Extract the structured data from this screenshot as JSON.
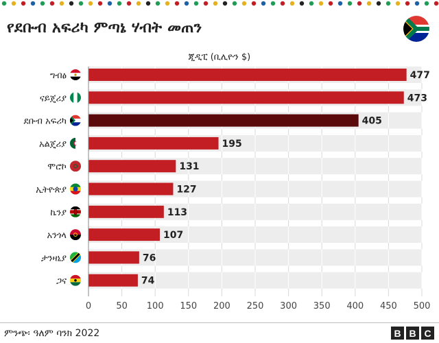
{
  "title": "የደቡብ አፍሪካ ምጣኔ ሃብት መጠን",
  "source": "ምንጭ፡ ዓለም ባንክ 2022",
  "logo": {
    "blocks": [
      "B",
      "B",
      "C"
    ]
  },
  "icons": {
    "header_flag": "south-africa-flag-icon"
  },
  "colors": {
    "bar_default": "#c31e23",
    "bar_highlight": "#5a0a0a",
    "track": "#ededed",
    "text": "#222222"
  },
  "chart_data": {
    "type": "bar",
    "orientation": "horizontal",
    "title": "የደቡብ አፍሪካ ምጣኔ ሃብት መጠን",
    "subtitle": "ጂዲፒ (ቢሊዮን $)",
    "categories": [
      "ግብፅ",
      "ናይጄሪያ",
      "ደቡብ አፍሪካ",
      "አልጄሪያ",
      "ሞሮኮ",
      "ኢትዮጵያ",
      "ኬንያ",
      "አንጎላ",
      "ታንዛኒያ",
      "ጋና"
    ],
    "flags": [
      "egypt-flag-icon",
      "nigeria-flag-icon",
      "south-africa-flag-icon",
      "algeria-flag-icon",
      "morocco-flag-icon",
      "ethiopia-flag-icon",
      "kenya-flag-icon",
      "angola-flag-icon",
      "tanzania-flag-icon",
      "ghana-flag-icon"
    ],
    "values": [
      477,
      473,
      405,
      195,
      131,
      127,
      113,
      107,
      76,
      74
    ],
    "highlight": "ደቡብ አፍሪካ",
    "xlim": [
      0,
      500
    ],
    "xticks": [
      0,
      50,
      100,
      150,
      200,
      250,
      300,
      350,
      400,
      450,
      500
    ],
    "grid": true,
    "legend": "none"
  }
}
